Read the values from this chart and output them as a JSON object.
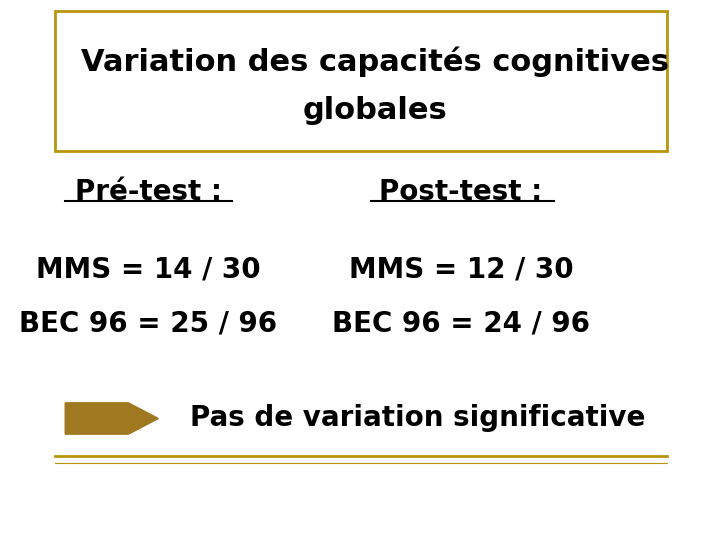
{
  "title_line1": "Variation des capacités cognitives",
  "title_line2": "globales",
  "pre_test_label": "Pré-test :",
  "post_test_label": "Post-test :",
  "pre_mms": "MMS = 14 / 30",
  "pre_bec": "BEC 96 = 25 / 96",
  "post_mms": "MMS = 12 / 30",
  "post_bec": "BEC 96 = 24 / 96",
  "conclusion": "Pas de variation significative",
  "bg_color": "#ffffff",
  "text_color": "#000000",
  "title_color": "#000000",
  "border_color": "#b8960c",
  "arrow_color": "#a07820",
  "font_family": "Comic Sans MS",
  "title_fontsize": 22,
  "label_fontsize": 20,
  "data_fontsize": 20,
  "conclusion_fontsize": 20
}
